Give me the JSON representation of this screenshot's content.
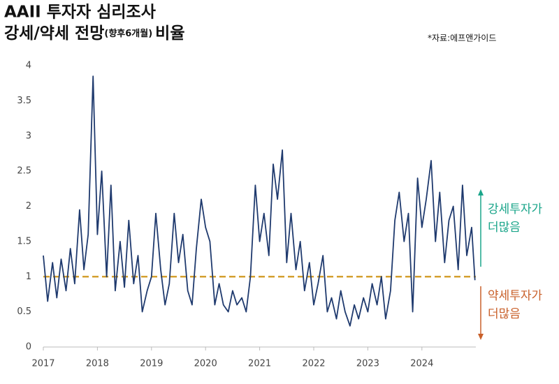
{
  "chart_data": {
    "type": "line",
    "title_lines": [
      "AAII 투자자 심리조사",
      "강세/약세 전망"
    ],
    "title_small": "(향후6개월)",
    "title_end": "비율",
    "source": "*자료:에프앤가이드",
    "annotations": [
      {
        "lines": [
          "강세투자가",
          "더많음"
        ],
        "color": "#1aa58a"
      },
      {
        "lines": [
          "약세투자가",
          "더많음"
        ],
        "color": "#c9602a"
      }
    ],
    "reference_line": {
      "value": 1,
      "color": "#d4a030"
    },
    "xlim": [
      2017,
      2025
    ],
    "xticks": [
      2017,
      2018,
      2019,
      2020,
      2021,
      2022,
      2023,
      2024
    ],
    "ylim": [
      0,
      4
    ],
    "yticks": [
      0,
      0.5,
      1,
      1.5,
      2,
      2.5,
      3,
      3.5,
      4
    ],
    "series": [
      {
        "color": "#1f3a6e",
        "x": [
          2017.0,
          2017.08,
          2017.17,
          2017.25,
          2017.33,
          2017.42,
          2017.5,
          2017.58,
          2017.67,
          2017.75,
          2017.83,
          2017.92,
          2018.0,
          2018.08,
          2018.17,
          2018.25,
          2018.33,
          2018.42,
          2018.5,
          2018.58,
          2018.67,
          2018.75,
          2018.83,
          2018.92,
          2019.0,
          2019.08,
          2019.17,
          2019.25,
          2019.33,
          2019.42,
          2019.5,
          2019.58,
          2019.67,
          2019.75,
          2019.83,
          2019.92,
          2020.0,
          2020.08,
          2020.17,
          2020.25,
          2020.33,
          2020.42,
          2020.5,
          2020.58,
          2020.67,
          2020.75,
          2020.83,
          2020.92,
          2021.0,
          2021.08,
          2021.17,
          2021.25,
          2021.33,
          2021.42,
          2021.5,
          2021.58,
          2021.67,
          2021.75,
          2021.83,
          2021.92,
          2022.0,
          2022.08,
          2022.17,
          2022.25,
          2022.33,
          2022.42,
          2022.5,
          2022.58,
          2022.67,
          2022.75,
          2022.83,
          2022.92,
          2023.0,
          2023.08,
          2023.17,
          2023.25,
          2023.33,
          2023.42,
          2023.5,
          2023.58,
          2023.67,
          2023.75,
          2023.83,
          2023.92,
          2024.0,
          2024.08,
          2024.17,
          2024.25,
          2024.33,
          2024.42,
          2024.5,
          2024.58,
          2024.67,
          2024.75,
          2024.83,
          2024.92,
          2024.98
        ],
        "values": [
          1.3,
          0.65,
          1.2,
          0.7,
          1.25,
          0.8,
          1.4,
          0.9,
          1.95,
          1.1,
          1.6,
          3.85,
          1.6,
          2.5,
          1.0,
          2.3,
          0.8,
          1.5,
          0.85,
          1.8,
          0.9,
          1.3,
          0.5,
          0.8,
          1.0,
          1.9,
          1.1,
          0.6,
          0.9,
          1.9,
          1.2,
          1.6,
          0.8,
          0.6,
          1.4,
          2.1,
          1.7,
          1.5,
          0.6,
          0.9,
          0.6,
          0.5,
          0.8,
          0.6,
          0.7,
          0.5,
          1.0,
          2.3,
          1.5,
          1.9,
          1.3,
          2.6,
          2.1,
          2.8,
          1.2,
          1.9,
          1.1,
          1.5,
          0.8,
          1.2,
          0.6,
          0.9,
          1.3,
          0.5,
          0.7,
          0.4,
          0.8,
          0.5,
          0.3,
          0.6,
          0.4,
          0.7,
          0.5,
          0.9,
          0.6,
          1.0,
          0.4,
          0.8,
          1.8,
          2.2,
          1.5,
          1.9,
          0.5,
          2.4,
          1.7,
          2.1,
          2.65,
          1.5,
          2.2,
          1.2,
          1.8,
          2.0,
          1.1,
          2.3,
          1.3,
          1.7,
          0.95
        ]
      }
    ]
  }
}
